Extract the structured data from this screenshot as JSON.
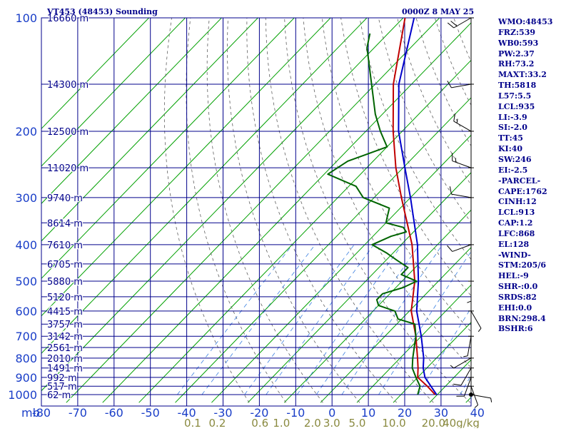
{
  "header": {
    "station": "VT453 (48453) Sounding",
    "time": "0000Z  8 MAY 25"
  },
  "indices": [
    "WMO:48453",
    "FRZ:539",
    "WB0:593",
    "PW:2.37",
    "RH:73.2",
    "MAXT:33.2",
    "TH:5818",
    "L57:5.5",
    "LCL:935",
    "LI:-3.9",
    "SI:-2.0",
    "TT:45",
    "KI:40",
    "SW:246",
    "EI:-2.5",
    "-PARCEL-",
    "CAPE:1762",
    "CINH:12",
    "LCL:913",
    "CAP:1.2",
    "LFC:868",
    "EL:128",
    "-WIND-",
    "STM:205/6",
    "HEL:-9",
    "SHR-:0.0",
    "SRDS:82",
    "EHI:0.0",
    "BRN:298.4",
    "BSHR:6"
  ],
  "colors": {
    "grid": "#00008b",
    "dry_adiabat": "#00a000",
    "moist_adiabat": "#606060",
    "mixing_ratio": "#3a7fe0",
    "temperature": "#c00000",
    "dewpoint": "#006400",
    "parcel": "#0000cc",
    "axis_label": "#1a3ec8",
    "mixing_label": "#8a8a40"
  },
  "chart_data": {
    "type": "skew-t log-p sounding",
    "title": "VT453 (48453) Sounding",
    "ylabel": "mb",
    "pressure_ticks": [
      100,
      200,
      300,
      400,
      500,
      600,
      700,
      800,
      900,
      1000
    ],
    "temperature_ticks": [
      -80,
      -70,
      -60,
      -50,
      -40,
      -30,
      -20,
      -10,
      0,
      10,
      20,
      30,
      40
    ],
    "temperature_tick_labels": [
      "-80",
      "-70",
      "-60",
      "-50",
      "-40",
      "-30",
      "-20",
      "-10",
      "0",
      "10",
      "20",
      "30",
      "40"
    ],
    "mixing_ratio_labels": [
      "0.1",
      "0.2",
      "0.6",
      "1.0",
      "2.0",
      "3.0",
      "5.0",
      "10.0",
      "20.0",
      "40g/kg"
    ],
    "mixing_ratio_values": [
      0.1,
      0.2,
      0.6,
      1.0,
      2.0,
      3.0,
      5.0,
      10.0,
      20.0,
      40.0
    ],
    "height_labels": [
      {
        "p": 100,
        "label": "16660 m"
      },
      {
        "p": 150,
        "label": "14300 m"
      },
      {
        "p": 200,
        "label": "12500 m"
      },
      {
        "p": 250,
        "label": "11020 m"
      },
      {
        "p": 300,
        "label": "9740 m"
      },
      {
        "p": 350,
        "label": "8614 m"
      },
      {
        "p": 400,
        "label": "7610 m"
      },
      {
        "p": 450,
        "label": "6705 m"
      },
      {
        "p": 500,
        "label": "5880 m"
      },
      {
        "p": 550,
        "label": "5120 m"
      },
      {
        "p": 600,
        "label": "4415 m"
      },
      {
        "p": 650,
        "label": "3757 m"
      },
      {
        "p": 700,
        "label": "3142 m"
      },
      {
        "p": 750,
        "label": "2561 m"
      },
      {
        "p": 800,
        "label": "2010 m"
      },
      {
        "p": 850,
        "label": "1491 m"
      },
      {
        "p": 900,
        "label": "992 m"
      },
      {
        "p": 950,
        "label": "517 m"
      },
      {
        "p": 1000,
        "label": "62 m"
      }
    ],
    "series": [
      {
        "points": [
          [
            1000,
            29.4
          ],
          [
            950,
            25
          ],
          [
            900,
            20
          ],
          [
            850,
            17.6
          ],
          [
            800,
            14.8
          ],
          [
            700,
            8.5
          ],
          [
            600,
            0.5
          ],
          [
            500,
            -6.5
          ],
          [
            400,
            -17
          ],
          [
            300,
            -32.5
          ],
          [
            250,
            -42
          ],
          [
            200,
            -52.5
          ],
          [
            150,
            -65
          ],
          [
            100,
            -79.5
          ]
        ]
      },
      {
        "points": [
          [
            1000,
            24.6
          ],
          [
            950,
            23
          ],
          [
            900,
            19.5
          ],
          [
            850,
            16
          ],
          [
            800,
            13.5
          ],
          [
            700,
            8.5
          ],
          [
            650,
            5
          ],
          [
            630,
            -1
          ],
          [
            600,
            -4
          ],
          [
            580,
            -10
          ],
          [
            560,
            -12
          ],
          [
            540,
            -12
          ],
          [
            520,
            -8
          ],
          [
            500,
            -6
          ],
          [
            480,
            -12
          ],
          [
            460,
            -12
          ],
          [
            440,
            -17
          ],
          [
            420,
            -22
          ],
          [
            400,
            -28
          ],
          [
            380,
            -25
          ],
          [
            370,
            -22
          ],
          [
            360,
            -24
          ],
          [
            350,
            -30
          ],
          [
            340,
            -31
          ],
          [
            320,
            -33
          ],
          [
            300,
            -43
          ],
          [
            280,
            -48
          ],
          [
            260,
            -59
          ],
          [
            240,
            -57
          ],
          [
            220,
            -50
          ],
          [
            200,
            -56
          ],
          [
            180,
            -62
          ],
          [
            150,
            -71
          ],
          [
            120,
            -82
          ],
          [
            110,
            -85
          ]
        ]
      },
      {
        "points": [
          [
            1000,
            29.8
          ],
          [
            950,
            26
          ],
          [
            900,
            22
          ],
          [
            850,
            19
          ],
          [
            800,
            16.5
          ],
          [
            700,
            10
          ],
          [
            600,
            2
          ],
          [
            500,
            -5.5
          ],
          [
            400,
            -15.5
          ],
          [
            300,
            -30
          ],
          [
            250,
            -39.5
          ],
          [
            200,
            -51
          ],
          [
            150,
            -63.5
          ],
          [
            100,
            -77
          ]
        ]
      }
    ],
    "wind_barbs": [
      {
        "p": 1000,
        "dir": 100,
        "spd": 5
      },
      {
        "p": 950,
        "dir": 160,
        "spd": 5
      },
      {
        "p": 900,
        "dir": 200,
        "spd": 10
      },
      {
        "p": 850,
        "dir": 210,
        "spd": 10
      },
      {
        "p": 800,
        "dir": 240,
        "spd": 5
      },
      {
        "p": 700,
        "dir": 190,
        "spd": 5
      },
      {
        "p": 600,
        "dir": 150,
        "spd": 5
      },
      {
        "p": 500,
        "dir": 180,
        "spd": 5
      },
      {
        "p": 400,
        "dir": 250,
        "spd": 10
      },
      {
        "p": 300,
        "dir": 280,
        "spd": 10
      },
      {
        "p": 250,
        "dir": 290,
        "spd": 15
      },
      {
        "p": 200,
        "dir": 300,
        "spd": 15
      },
      {
        "p": 150,
        "dir": 260,
        "spd": 10
      },
      {
        "p": 100,
        "dir": 240,
        "spd": 20
      }
    ]
  }
}
